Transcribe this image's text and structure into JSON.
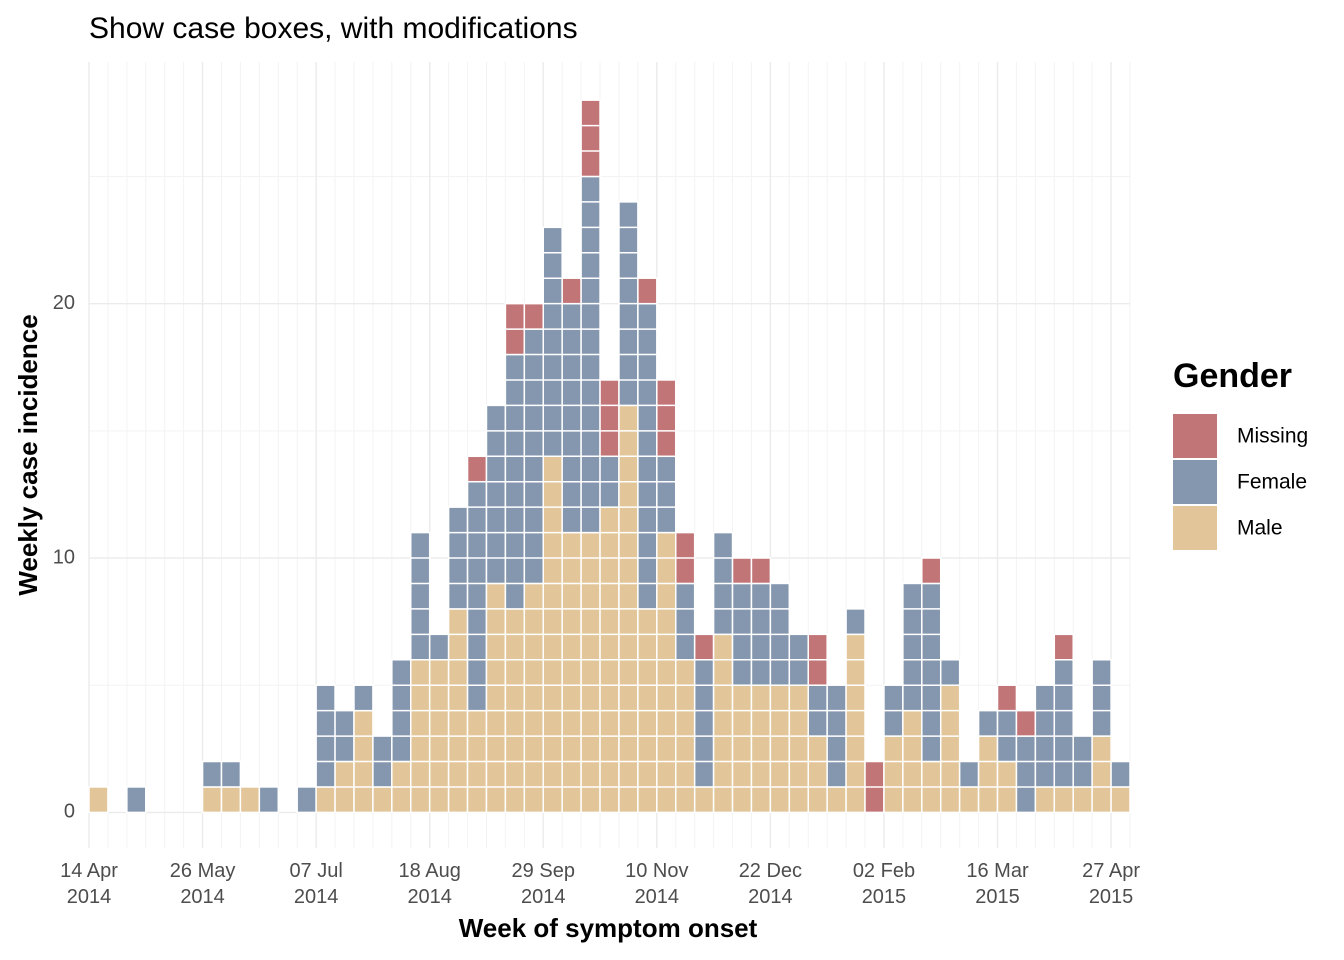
{
  "chart_data": {
    "type": "stacked_bar",
    "title": "Show case boxes, with modifications",
    "x_label": "Week of symptom onset",
    "y_label": "Weekly case incidence",
    "legend_title": "Gender",
    "categories": [
      "14 Apr 2014",
      null,
      null,
      null,
      null,
      null,
      "26 May 2014",
      null,
      null,
      null,
      null,
      null,
      "07 Jul 2014",
      null,
      null,
      null,
      null,
      null,
      "18 Aug 2014",
      null,
      null,
      null,
      null,
      null,
      "29 Sep 2014",
      null,
      null,
      null,
      null,
      null,
      "10 Nov 2014",
      null,
      null,
      null,
      null,
      null,
      "22 Dec 2014",
      null,
      null,
      null,
      null,
      null,
      "02 Feb 2015",
      null,
      null,
      null,
      null,
      null,
      "16 Mar 2015",
      null,
      null,
      null,
      null,
      null,
      "27 Apr 2015"
    ],
    "series": [
      {
        "name": "Male",
        "color": "#e2c598",
        "values": [
          1,
          0,
          0,
          0,
          0,
          0,
          1,
          1,
          1,
          0,
          0,
          0,
          1,
          2,
          4,
          1,
          2,
          6,
          6,
          8,
          4,
          9,
          8,
          9,
          14,
          11,
          11,
          12,
          16,
          8,
          11,
          6,
          1,
          7,
          5,
          5,
          5,
          5,
          3,
          1,
          7,
          0,
          3,
          4,
          2,
          5,
          1,
          3,
          2,
          0,
          1,
          1,
          1,
          3,
          1
        ]
      },
      {
        "name": "Female",
        "color": "#8497af",
        "values": [
          0,
          0,
          1,
          0,
          0,
          0,
          1,
          1,
          0,
          1,
          0,
          1,
          4,
          2,
          1,
          2,
          4,
          5,
          1,
          4,
          9,
          7,
          10,
          10,
          9,
          9,
          14,
          2,
          8,
          12,
          3,
          3,
          5,
          4,
          4,
          4,
          4,
          2,
          2,
          4,
          1,
          0,
          2,
          5,
          7,
          1,
          1,
          1,
          2,
          3,
          4,
          5,
          2,
          3,
          1
        ]
      },
      {
        "name": "Missing",
        "color": "#c27577",
        "values": [
          0,
          0,
          0,
          0,
          0,
          0,
          0,
          0,
          0,
          0,
          0,
          0,
          0,
          0,
          0,
          0,
          0,
          0,
          0,
          0,
          1,
          0,
          2,
          1,
          0,
          1,
          3,
          3,
          0,
          1,
          3,
          2,
          1,
          0,
          1,
          1,
          0,
          0,
          2,
          0,
          0,
          2,
          0,
          0,
          1,
          0,
          0,
          0,
          1,
          1,
          0,
          1,
          0,
          0,
          0
        ]
      }
    ],
    "ylim": [
      -1.4,
      29.5
    ],
    "yticks": [
      0,
      10,
      20
    ],
    "grid": true,
    "legend": "right"
  }
}
